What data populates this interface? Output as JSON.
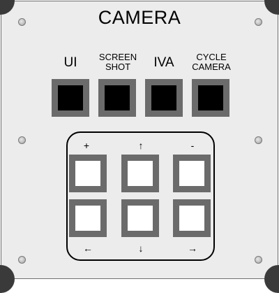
{
  "panel": {
    "title": "CAMERA"
  },
  "top_buttons": [
    {
      "label_line1": "UI",
      "label_line2": ""
    },
    {
      "label_line1": "SCREEN",
      "label_line2": "SHOT"
    },
    {
      "label_line1": "IVA",
      "label_line2": ""
    },
    {
      "label_line1": "CYCLE",
      "label_line2": "CAMERA"
    }
  ],
  "pad": {
    "top_glyphs": [
      "+",
      "↑",
      "-"
    ],
    "bottom_glyphs": [
      "←",
      "↓",
      "→"
    ]
  }
}
